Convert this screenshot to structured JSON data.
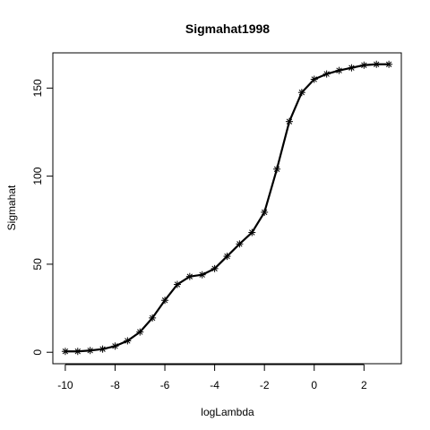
{
  "chart_data": {
    "type": "line",
    "title": "Sigmahat1998",
    "xlabel": "logLambda",
    "ylabel": "Sigmahat",
    "xlim": [
      -10.5,
      3.5
    ],
    "ylim": [
      -6.5,
      170
    ],
    "x_ticks": [
      -10,
      -8,
      -6,
      -4,
      -2,
      0,
      2
    ],
    "x_tick_labels": [
      "-10",
      "-8",
      "-6",
      "-4",
      "-2",
      "0",
      "2"
    ],
    "y_ticks": [
      0,
      50,
      100,
      150
    ],
    "y_tick_labels": [
      "0",
      "50",
      "100",
      "150"
    ],
    "grid": false,
    "legend": "none",
    "marker": "asterisk",
    "color": "#000000",
    "series": [
      {
        "x": [
          -10,
          -9.5,
          -9,
          -8.5,
          -8,
          -7.5,
          -7,
          -6.5,
          -6,
          -5.5,
          -5,
          -4.5,
          -4,
          -3.5,
          -3,
          -2.5,
          -2,
          -1.5,
          -1,
          -0.5,
          0,
          0.5,
          1,
          1.5,
          2,
          2.5,
          3
        ],
        "y": [
          0.5,
          0.5,
          1,
          1.8,
          3.5,
          6.5,
          11.5,
          19.5,
          29.5,
          38.5,
          43,
          44,
          47.5,
          54.5,
          61.5,
          68,
          79.5,
          104,
          131,
          147.5,
          155,
          158,
          160,
          161.5,
          163,
          163.5,
          163.5
        ]
      }
    ]
  }
}
